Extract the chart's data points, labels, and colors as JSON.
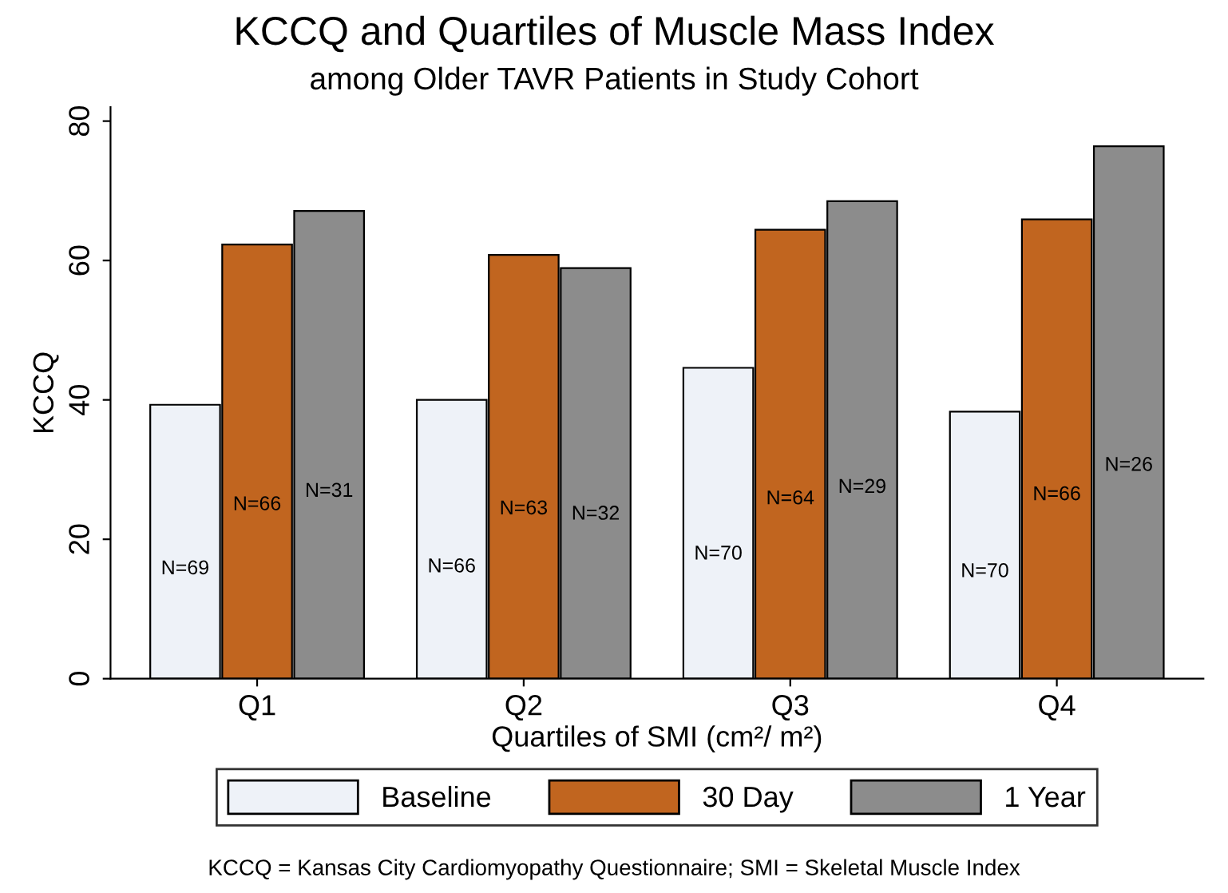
{
  "chart_data": {
    "type": "bar",
    "title": "KCCQ and Quartiles of Muscle Mass Index",
    "subtitle": "among Older TAVR Patients in Study Cohort",
    "xlabel": "Quartiles of SMI (cm²/ m²)",
    "ylabel": "KCCQ",
    "categories": [
      "Q1",
      "Q2",
      "Q3",
      "Q4"
    ],
    "series": [
      {
        "name": "Baseline",
        "color": "#eef2f8",
        "values": [
          39.3,
          40.0,
          44.6,
          38.3
        ]
      },
      {
        "name": "30 Day",
        "color": "#c1651f",
        "values": [
          62.3,
          60.8,
          64.4,
          65.9
        ]
      },
      {
        "name": "1 Year",
        "color": "#8c8c8c",
        "values": [
          67.1,
          58.9,
          68.5,
          76.4
        ]
      }
    ],
    "ylim": [
      0,
      82
    ],
    "yticks": [
      0,
      20,
      40,
      60,
      80
    ],
    "legend": "bottom",
    "annotations": [
      "N=69",
      "N=66",
      "N=31",
      "N=66",
      "N=63",
      "N=32",
      "N=70",
      "N=64",
      "N=29",
      "N=70",
      "N=66",
      "N=26",
      "KCCQ = Kansas City Cardiomyopathy Questionnaire; SMI = Skeletal Muscle Index"
    ]
  }
}
